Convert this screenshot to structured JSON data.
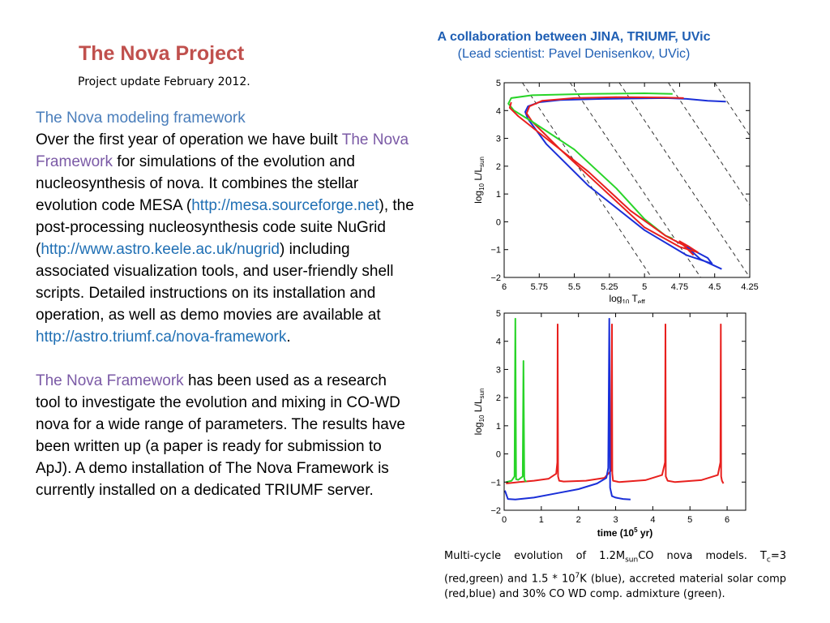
{
  "header": {
    "title": "The Nova Project",
    "update": "Project update February 2012.",
    "collab_line1": "A collaboration between JINA, TRIUMF, UVic",
    "collab_line2": "(Lead scientist: Pavel Denisenkov, UVic)"
  },
  "body": {
    "heading": "The Nova modeling framework",
    "p1_a": "Over the first year of operation we have built ",
    "framework_name": "The Nova Framework",
    "p1_b": " for simulations of the evolution and nucleosynthesis of nova. It combines the stellar evolution code MESA (",
    "link_mesa": "http://mesa.sourceforge.net",
    "p1_c": "), the post-processing nucleosynthesis code suite NuGrid (",
    "link_nugrid": "http://www.astro.keele.ac.uk/nugrid",
    "p1_d": ") including associated visualization tools, and user-friendly shell scripts. Detailed instructions on its installation and operation, as well as demo movies are available at ",
    "link_framework": "http://astro.triumf.ca/nova-framework",
    "p1_e": ".",
    "p2_b": " has been used as a research tool to investigate the evolution and mixing in CO-WD nova for a wide range of parameters. The results have been written up (a paper is ready for submission to ApJ). A demo installation of The Nova Framework is currently installed on a dedicated TRIUMF server."
  },
  "caption": {
    "a": "Multi-cycle evolution of 1.2M",
    "sub_sun": "sun",
    "b": "CO nova models. T",
    "sub_c": "c",
    "c": "=3 (red,green) and 1.5 * 10",
    "sup_7": "7",
    "d": "K (blue), accreted material solar comp (red,blue) and 30% CO WD comp. admixture (green)."
  },
  "colors": {
    "red": "#e8201e",
    "green": "#28d428",
    "blue": "#1a2fd8",
    "dashed": "#333333"
  },
  "chart_data": [
    {
      "type": "line",
      "title": "",
      "xlabel_main": "log",
      "xlabel_sub": "10",
      "xlabel_rest": " T",
      "xlabel_sub2": "eff",
      "ylabel_main": "log",
      "ylabel_sub": "10",
      "ylabel_rest": " L/L",
      "ylabel_sub2": "sun",
      "xlim": [
        6,
        4.25
      ],
      "ylim": [
        -2,
        5
      ],
      "xticks": [
        6,
        5.75,
        5.5,
        5.25,
        5,
        4.75,
        4.5,
        4.25
      ],
      "xtick_labels": [
        "6",
        "5.75",
        "5.5",
        "5.25",
        "5",
        "4.75",
        "4.5",
        "4.25"
      ],
      "yticks": [
        -2,
        -1,
        0,
        1,
        2,
        3,
        4,
        5
      ],
      "ytick_labels": [
        "−2",
        "−1",
        "0",
        "1",
        "2",
        "3",
        "4",
        "5"
      ],
      "dashed_lines": [
        {
          "x": [
            5.87,
            4.95
          ],
          "y": [
            5,
            -2
          ]
        },
        {
          "x": [
            5.53,
            4.6
          ],
          "y": [
            5,
            -2
          ]
        },
        {
          "x": [
            5.18,
            4.25
          ],
          "y": [
            5,
            -2
          ]
        },
        {
          "x": [
            4.83,
            4.25
          ],
          "y": [
            5,
            0.6
          ]
        },
        {
          "x": [
            4.5,
            4.25
          ],
          "y": [
            5,
            3.1
          ]
        }
      ],
      "series": [
        {
          "name": "blue",
          "color": "blue",
          "x": [
            4.42,
            4.55,
            4.7,
            4.85,
            5.3,
            5.6,
            5.75,
            5.83,
            5.85,
            5.83,
            5.7,
            5.4,
            5.0,
            4.7,
            4.52,
            4.55,
            4.7,
            4.6,
            4.45
          ],
          "y": [
            4.32,
            4.35,
            4.42,
            4.45,
            4.42,
            4.38,
            4.3,
            4.15,
            3.95,
            3.7,
            2.8,
            1.3,
            -0.3,
            -1.2,
            -1.5,
            -1.3,
            -0.9,
            -1.35,
            -1.7
          ]
        },
        {
          "name": "red",
          "color": "red",
          "x": [
            4.72,
            4.85,
            5.2,
            5.5,
            5.73,
            5.82,
            5.84,
            5.8,
            5.6,
            5.3,
            5.0,
            4.75,
            4.62,
            4.68,
            4.75,
            4.65
          ],
          "y": [
            4.45,
            4.47,
            4.48,
            4.45,
            4.35,
            4.15,
            3.9,
            3.6,
            2.6,
            1.2,
            -0.2,
            -0.9,
            -1.1,
            -0.9,
            -0.7,
            -1.2
          ]
        },
        {
          "name": "green",
          "color": "green",
          "x": [
            4.8,
            5.0,
            5.4,
            5.8,
            5.95,
            5.97,
            5.93,
            5.8,
            5.5,
            5.2,
            5.0,
            4.85,
            4.8
          ],
          "y": [
            4.6,
            4.62,
            4.6,
            4.55,
            4.45,
            4.25,
            4.0,
            3.6,
            2.6,
            1.2,
            0.1,
            -0.5,
            -0.6
          ]
        },
        {
          "name": "darkred",
          "color": "red",
          "x": [
            5.95,
            5.96,
            5.9,
            5.7,
            5.4,
            5.1,
            4.85,
            4.7
          ],
          "y": [
            4.3,
            4.1,
            3.8,
            3.0,
            1.8,
            0.4,
            -0.5,
            -0.9
          ]
        }
      ]
    },
    {
      "type": "line",
      "title": "",
      "xlabel": "time (10",
      "xlabel_sup": "5",
      "xlabel_rest": " yr)",
      "ylabel_main": "log",
      "ylabel_sub": "10",
      "ylabel_rest": " L/L",
      "ylabel_sub2": "sun",
      "xlim": [
        0,
        6.5
      ],
      "ylim": [
        -2,
        5
      ],
      "xticks": [
        0,
        1,
        2,
        3,
        4,
        5,
        6
      ],
      "xtick_labels": [
        "0",
        "1",
        "2",
        "3",
        "4",
        "5",
        "6"
      ],
      "yticks": [
        -2,
        -1,
        0,
        1,
        2,
        3,
        4,
        5
      ],
      "ytick_labels": [
        "−2",
        "−1",
        "0",
        "1",
        "2",
        "3",
        "4",
        "5"
      ],
      "series": [
        {
          "name": "red",
          "color": "red",
          "x": [
            0.05,
            0.4,
            0.8,
            1.2,
            1.4,
            1.43,
            1.44,
            1.45,
            1.48,
            1.6,
            2.2,
            2.7,
            2.87,
            2.9,
            2.91,
            2.93,
            3.1,
            3.8,
            4.25,
            4.33,
            4.34,
            4.35,
            4.4,
            4.6,
            5.3,
            5.75,
            5.82,
            5.83,
            5.84,
            5.86,
            5.9
          ],
          "y": [
            -1.05,
            -1.0,
            -0.95,
            -0.88,
            -0.7,
            -0.3,
            4.6,
            -0.8,
            -0.95,
            -0.98,
            -0.95,
            -0.85,
            -0.6,
            4.6,
            -0.7,
            -0.95,
            -1.0,
            -0.93,
            -0.75,
            -0.3,
            4.6,
            -0.8,
            -0.95,
            -1.0,
            -0.93,
            -0.75,
            -0.3,
            4.6,
            -0.8,
            -0.95,
            -1.05
          ]
        },
        {
          "name": "green",
          "color": "green",
          "x": [
            0.05,
            0.2,
            0.28,
            0.3,
            0.32,
            0.38,
            0.5,
            0.52,
            0.54,
            0.56,
            0.6
          ],
          "y": [
            -1.0,
            -0.95,
            -0.8,
            4.8,
            -0.9,
            -0.92,
            -0.8,
            3.3,
            -0.85,
            -0.95,
            -0.98
          ]
        },
        {
          "name": "blue",
          "color": "blue",
          "x": [
            0.02,
            0.1,
            0.3,
            0.8,
            1.4,
            2.0,
            2.5,
            2.75,
            2.8,
            2.83,
            2.85,
            2.9,
            3.0,
            3.2,
            3.4
          ],
          "y": [
            -1.3,
            -1.6,
            -1.62,
            -1.55,
            -1.4,
            -1.25,
            -1.05,
            -0.85,
            -0.5,
            4.8,
            -1.2,
            -1.5,
            -1.55,
            -1.6,
            -1.62
          ]
        }
      ]
    }
  ]
}
